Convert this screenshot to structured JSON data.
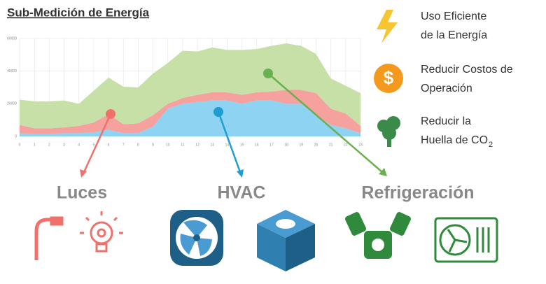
{
  "chart_data": {
    "type": "stacked-area",
    "title": "Sub-Medición de Energía",
    "x": [
      0,
      1,
      2,
      3,
      4,
      5,
      6,
      7,
      8,
      9,
      10,
      11,
      12,
      13,
      14,
      15,
      16,
      17,
      18,
      19,
      20,
      21,
      22,
      23
    ],
    "xlim": [
      0,
      23
    ],
    "xticks": [
      0,
      1,
      2,
      3,
      4,
      5,
      6,
      7,
      8,
      9,
      10,
      11,
      12,
      13,
      14,
      15,
      16,
      17,
      18,
      19,
      20,
      21,
      22,
      23
    ],
    "ylim": [
      0,
      60000
    ],
    "yticks": [
      0,
      20000,
      40000,
      60000
    ],
    "grid": true,
    "series": [
      {
        "name": "HVAC",
        "color": "#8fd3f2",
        "values": [
          2000,
          1500,
          1500,
          2000,
          2000,
          2500,
          4000,
          2000,
          2000,
          6000,
          17000,
          20000,
          21000,
          22000,
          22000,
          20000,
          22000,
          22000,
          20000,
          20000,
          13000,
          7000,
          5000,
          2000
        ]
      },
      {
        "name": "Luces",
        "color": "#f5a19d",
        "values": [
          5000,
          3500,
          3500,
          3500,
          4500,
          6000,
          9500,
          5500,
          6000,
          7000,
          3000,
          3500,
          4500,
          5000,
          5000,
          5500,
          5000,
          5500,
          8500,
          8500,
          13500,
          10000,
          9000,
          4500
        ]
      },
      {
        "name": "Refrigeración",
        "color": "#c6e0a8",
        "values": [
          15500,
          16500,
          16500,
          16500,
          13500,
          19500,
          22500,
          23000,
          22000,
          25500,
          25000,
          29000,
          26500,
          27500,
          26000,
          27500,
          26500,
          28000,
          28500,
          27000,
          24000,
          18500,
          17000,
          20000
        ]
      }
    ]
  },
  "benefits": [
    {
      "lines": [
        "Uso Eficiente",
        "de la Energía"
      ]
    },
    {
      "lines": [
        "Reducir Costos de",
        "Operación"
      ]
    },
    {
      "lines": [
        "Reducir la",
        "Huella de CO"
      ],
      "subscript": "2"
    }
  ]
}
